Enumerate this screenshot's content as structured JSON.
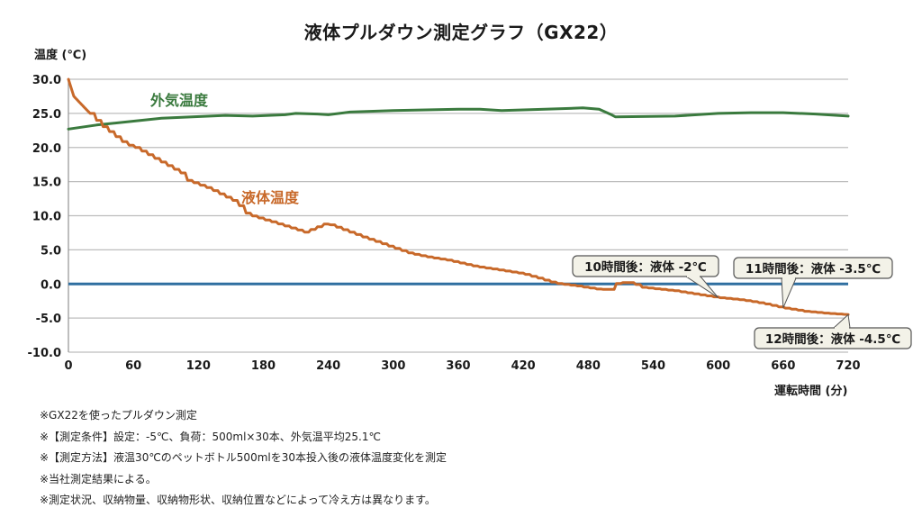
{
  "chart_data": {
    "type": "line",
    "title": "液体プルダウン測定グラフ（GX22）",
    "ylabel": "温度 (℃)",
    "xlabel": "運転時間 (分)",
    "ylim": [
      -10,
      30
    ],
    "xlim": [
      0,
      720
    ],
    "yticks": [
      "30.0",
      "25.0",
      "20.0",
      "15.0",
      "10.0",
      "5.0",
      "0.0",
      "-5.0",
      "-10.0"
    ],
    "yticks_values": [
      30,
      25,
      20,
      15,
      10,
      5,
      0,
      -5,
      -10
    ],
    "xticks": [
      "0",
      "60",
      "120",
      "180",
      "240",
      "300",
      "360",
      "420",
      "480",
      "540",
      "600",
      "660",
      "720"
    ],
    "xticks_values": [
      0,
      60,
      120,
      180,
      240,
      300,
      360,
      420,
      480,
      540,
      600,
      660,
      720
    ],
    "grid": true,
    "reference_line": {
      "y": 0,
      "color": "#2f6fa0"
    },
    "series": [
      {
        "name": "外気温度",
        "color": "#3a7a3e",
        "x": [
          0,
          26,
          86,
          145,
          170,
          200,
          210,
          230,
          240,
          260,
          300,
          360,
          380,
          400,
          440,
          475,
          490,
          500,
          505,
          560,
          600,
          630,
          660,
          690,
          720
        ],
        "values": [
          22.7,
          23.3,
          24.3,
          24.7,
          24.6,
          24.8,
          25.0,
          24.9,
          24.8,
          25.2,
          25.4,
          25.6,
          25.6,
          25.4,
          25.6,
          25.8,
          25.6,
          24.9,
          24.5,
          24.6,
          25.0,
          25.1,
          25.1,
          24.9,
          24.6
        ]
      },
      {
        "name": "液体温度",
        "color": "#c8692a",
        "x": [
          0,
          5,
          20,
          30,
          53,
          62,
          107,
          108,
          130,
          155,
          165,
          190,
          218,
          238,
          270,
          315,
          330,
          350,
          375,
          400,
          420,
          435,
          450,
          470,
          490,
          500,
          507,
          520,
          530,
          560,
          600,
          620,
          640,
          660,
          680,
          700,
          720
        ],
        "values": [
          30,
          27.5,
          25,
          23.3,
          20.5,
          20,
          16,
          15.3,
          14,
          12,
          10.2,
          9,
          7.6,
          8.9,
          7,
          4.5,
          4,
          3.5,
          2.6,
          2,
          1.5,
          0.8,
          0.1,
          -0.3,
          -0.8,
          -0.8,
          0.2,
          0.2,
          -0.5,
          -1,
          -2,
          -2.3,
          -2.8,
          -3.5,
          -4,
          -4.3,
          -4.5
        ]
      }
    ],
    "series_labels": [
      "外気温度",
      "液体温度"
    ],
    "annotations": [
      {
        "text": "10時間後：液体 -2℃",
        "x": 600,
        "y": -2
      },
      {
        "text": "11時間後：液体 -3.5℃",
        "x": 660,
        "y": -3.5
      },
      {
        "text": "12時間後：液体 -4.5℃",
        "x": 720,
        "y": -4.5
      }
    ]
  },
  "notes": [
    "※GX22を使ったプルダウン測定",
    "※【測定条件】設定：-5℃、負荷：500ml×30本、外気温平均25.1℃",
    "※【測定方法】液温30℃のペットボトル500mlを30本投入後の液体温度変化を測定",
    "※当社測定結果による。",
    "※測定状況、収納物量、収納物形状、収納位置などによって冷え方は異なります。"
  ]
}
